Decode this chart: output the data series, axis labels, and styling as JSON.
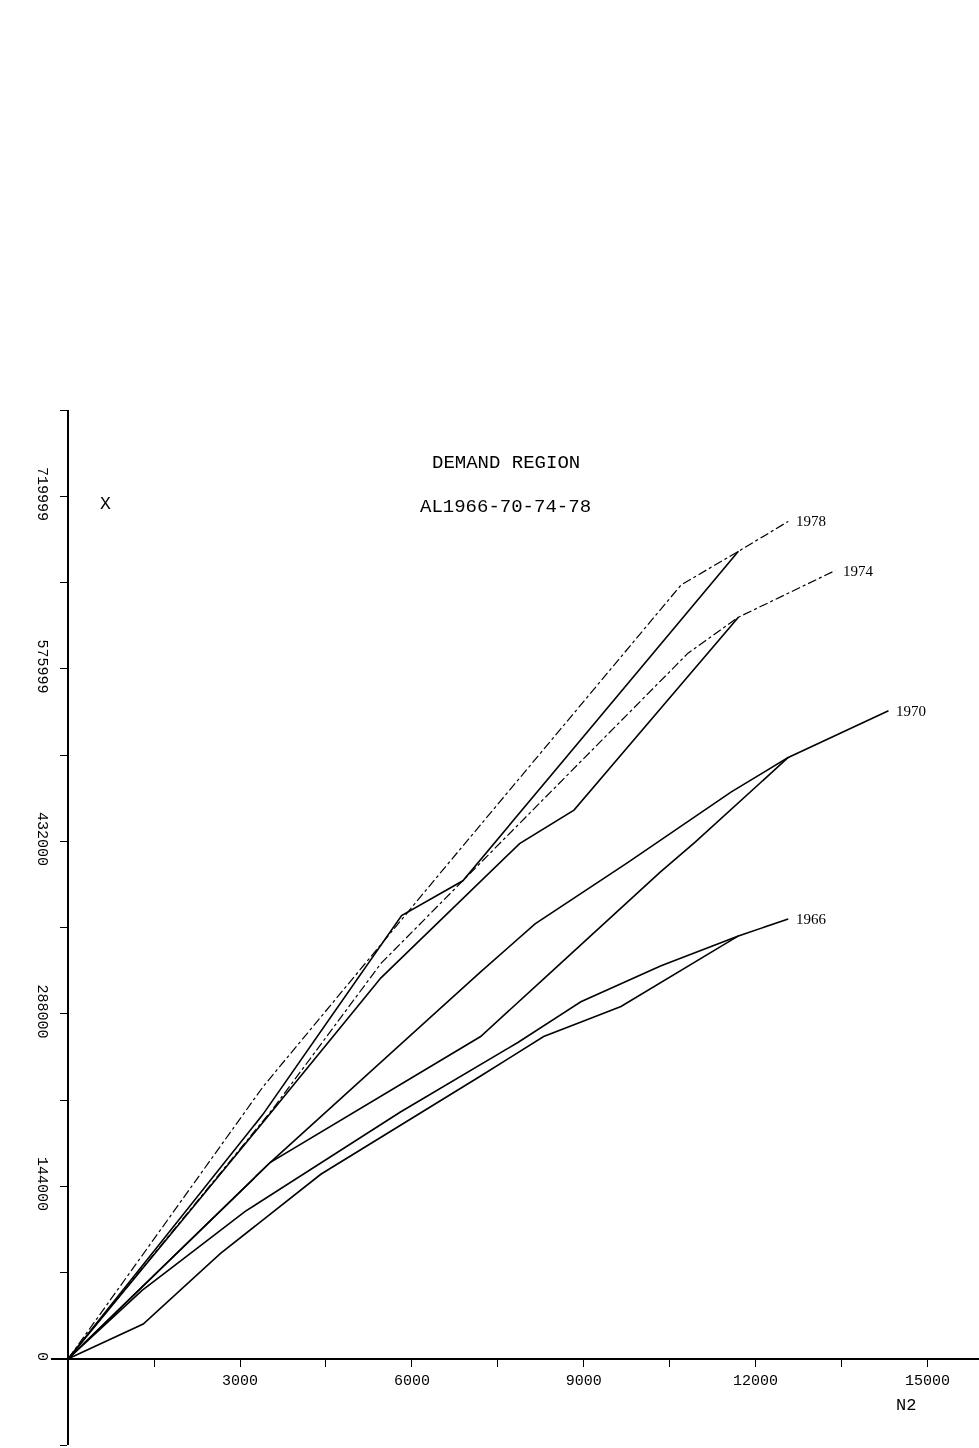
{
  "chart_data": {
    "type": "line",
    "title": "DEMAND REGION",
    "subtitle": "AL1966-70-74-78",
    "xlabel": "N2",
    "ylabel": "X",
    "xlim": [
      -300,
      15900
    ],
    "ylim": [
      -72000,
      792000
    ],
    "xticks": [
      {
        "value": 1500,
        "label": null
      },
      3000,
      {
        "value": 4500,
        "label": null
      },
      6000,
      {
        "value": 7500,
        "label": null
      },
      9000,
      {
        "value": 10500,
        "label": null
      },
      12000,
      {
        "value": 13500,
        "label": null
      },
      15000
    ],
    "yticks": [
      {
        "value": -72000,
        "label": null
      },
      0,
      {
        "value": 72000,
        "label": null
      },
      144000,
      {
        "value": 216000,
        "label": null
      },
      288000,
      {
        "value": 360000,
        "label": null
      },
      432000,
      {
        "value": 504000,
        "label": null
      },
      575999,
      {
        "value": 648000,
        "label": null
      },
      719999,
      {
        "value": 792000,
        "label": null
      }
    ],
    "grid": false,
    "legend": false,
    "marker": "none",
    "series": [
      {
        "name": "1978",
        "color": "#000000",
        "line_style": "dashed",
        "x": [
          0,
          3400,
          6400,
          10700,
          11700,
          12570
        ],
        "values": [
          0,
          227000,
          400000,
          646000,
          674000,
          699000
        ]
      },
      {
        "color": "#000000",
        "line_style": "solid",
        "x": [
          0,
          3400,
          5820,
          6890,
          11700
        ],
        "values": [
          0,
          204000,
          370000,
          399000,
          674000
        ]
      },
      {
        "name": "1974",
        "color": "#000000",
        "line_style": "dashed",
        "x": [
          0,
          3580,
          5460,
          10820,
          11700,
          13390
        ],
        "values": [
          0,
          209000,
          330000,
          589000,
          619000,
          658000
        ]
      },
      {
        "color": "#000000",
        "line_style": "solid",
        "x": [
          0,
          3480,
          5460,
          7880,
          8830,
          11700
        ],
        "values": [
          0,
          202000,
          318000,
          430000,
          458000,
          619000
        ]
      },
      {
        "name": "1970",
        "color": "#000000",
        "line_style": "solid",
        "x": [
          0,
          3530,
          7200,
          8150,
          9760,
          11570,
          12570,
          14320
        ],
        "values": [
          0,
          164000,
          323000,
          363000,
          414000,
          473000,
          502000,
          541000
        ]
      },
      {
        "color": "#000000",
        "line_style": "solid",
        "x": [
          0,
          3530,
          7200,
          8320,
          10330,
          10940,
          12570
        ],
        "values": [
          0,
          164000,
          269000,
          318000,
          406000,
          431000,
          502000
        ]
      },
      {
        "name": "1966",
        "color": "#000000",
        "line_style": "solid",
        "x": [
          0,
          1310,
          2660,
          4410,
          7200,
          8300,
          9650,
          11700,
          12570
        ],
        "values": [
          0,
          29000,
          88000,
          154000,
          236000,
          269000,
          294000,
          353000,
          367000
        ]
      },
      {
        "color": "#000000",
        "line_style": "solid",
        "x": [
          0,
          1290,
          3090,
          5800,
          7850,
          8950,
          10350,
          11700
        ],
        "values": [
          0,
          57000,
          123000,
          206000,
          264000,
          298000,
          328000,
          353000
        ]
      }
    ]
  }
}
